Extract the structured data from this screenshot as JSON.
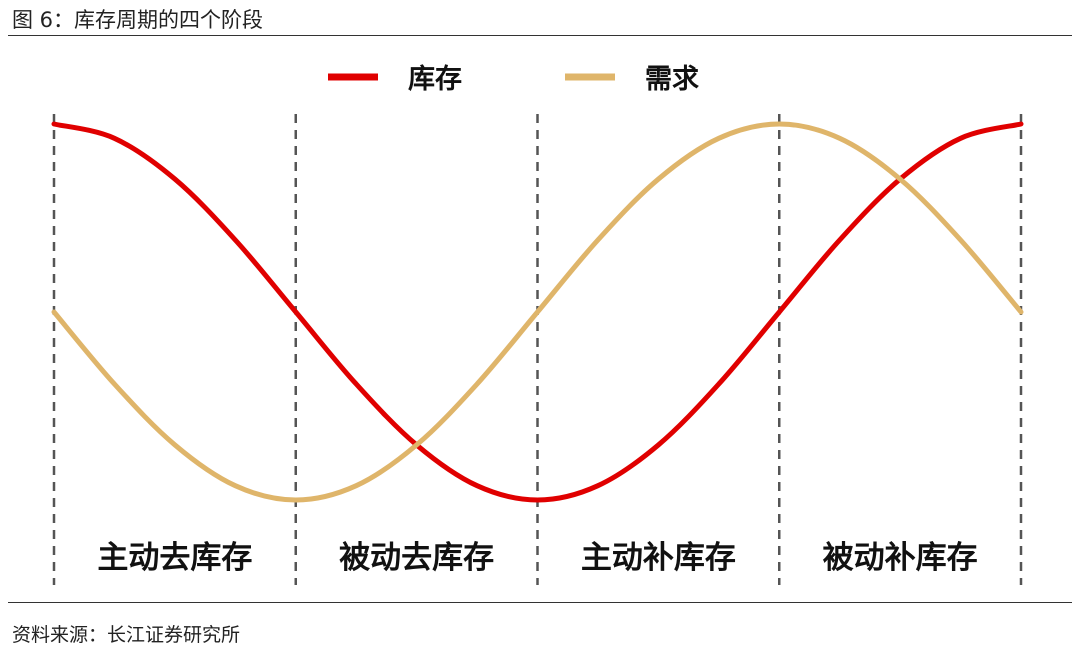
{
  "figure": {
    "title": "图 6：库存周期的四个阶段",
    "source": "资料来源：长江证券研究所"
  },
  "chart_data": {
    "type": "line",
    "title": "",
    "xlabel": "",
    "ylabel": "",
    "grid": false,
    "legend_position": "top-center",
    "x": [
      0,
      0.25,
      0.5,
      0.75,
      1,
      1.25,
      1.5,
      1.75,
      2,
      2.25,
      2.5,
      2.75,
      3,
      3.25,
      3.5,
      3.75,
      4
    ],
    "ylim": [
      -1,
      1
    ],
    "series": [
      {
        "name": "库存",
        "color": "#e00000",
        "values": [
          1,
          0.924,
          0.707,
          0.383,
          0,
          -0.383,
          -0.707,
          -0.924,
          -1,
          -0.924,
          -0.707,
          -0.383,
          0,
          0.383,
          0.707,
          0.924,
          1
        ]
      },
      {
        "name": "需求",
        "color": "#dfb56a",
        "values": [
          0,
          -0.383,
          -0.707,
          -0.924,
          -1,
          -0.924,
          -0.707,
          -0.383,
          0,
          0.383,
          0.707,
          0.924,
          1,
          0.924,
          0.707,
          0.383,
          0
        ]
      }
    ],
    "phase_boundaries": [
      0,
      1,
      2,
      3,
      4
    ],
    "phases": [
      "主动去库存",
      "被动去库存",
      "主动补库存",
      "被动补库存"
    ]
  }
}
